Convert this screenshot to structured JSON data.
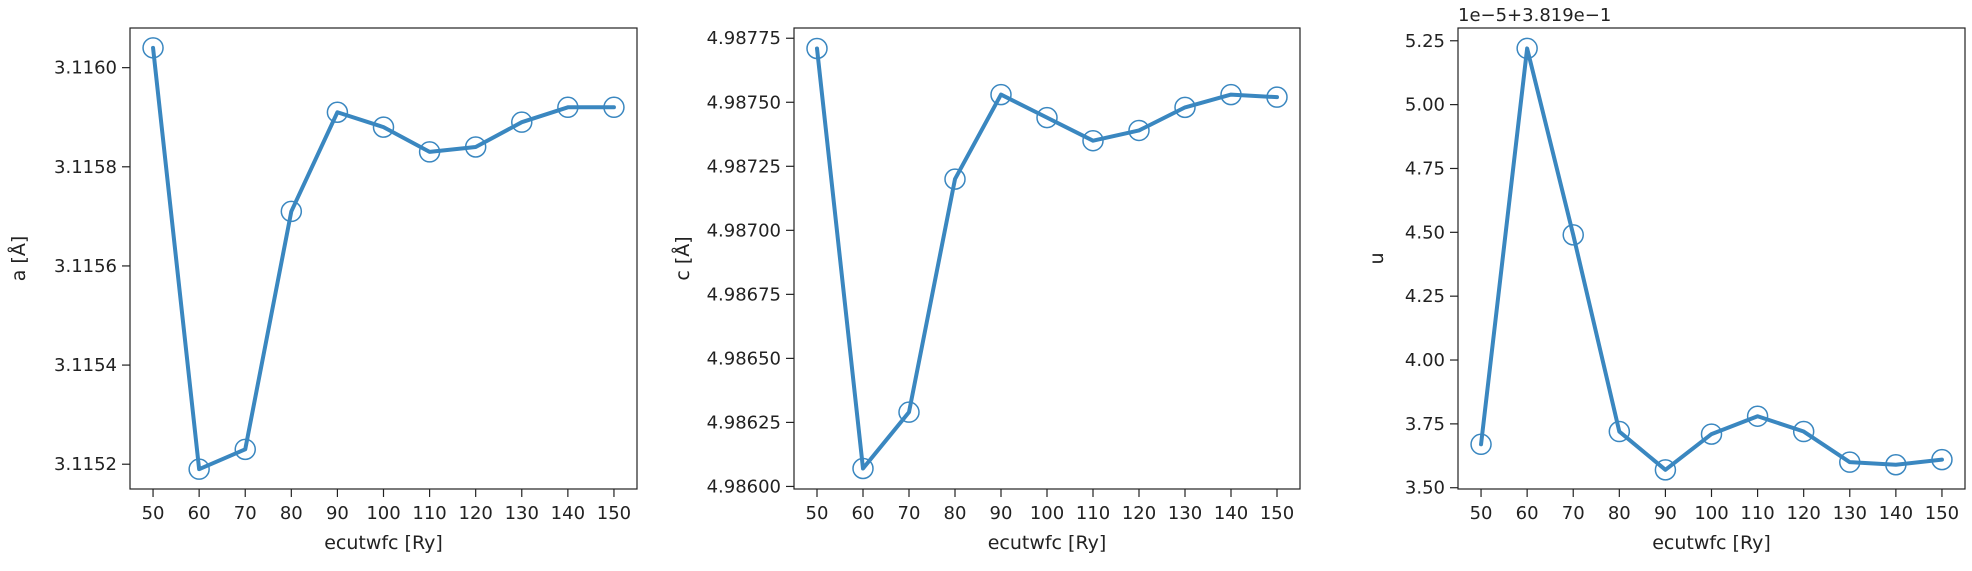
{
  "colors": {
    "line": "#3a87c0",
    "marker_edge": "#3a87c0",
    "axes": "#222222",
    "background": "#ffffff"
  },
  "chart_data": [
    {
      "type": "line",
      "xlabel": "ecutwfc [Ry]",
      "ylabel": "a [Å]",
      "offset_label": "",
      "x": [
        50,
        60,
        70,
        80,
        90,
        100,
        110,
        120,
        130,
        140,
        150
      ],
      "y": [
        3.11604,
        3.11519,
        3.11523,
        3.11571,
        3.11591,
        3.11588,
        3.11583,
        3.11584,
        3.11589,
        3.11592,
        3.11592
      ],
      "xticks": [
        50,
        60,
        70,
        80,
        90,
        100,
        110,
        120,
        130,
        140,
        150
      ],
      "xtick_labels": [
        "50",
        "60",
        "70",
        "80",
        "90",
        "100",
        "110",
        "120",
        "130",
        "140",
        "150"
      ],
      "xlim": [
        45,
        155
      ],
      "yticks": [
        3.1152,
        3.1154,
        3.1156,
        3.1158,
        3.116
      ],
      "ytick_labels": [
        "3.1152",
        "3.1154",
        "3.1156",
        "3.1158",
        "3.1160"
      ],
      "ylim": [
        3.11515,
        3.11608
      ],
      "grid": false,
      "legend": "none"
    },
    {
      "type": "line",
      "xlabel": "ecutwfc [Ry]",
      "ylabel": "c [Å]",
      "offset_label": "",
      "x": [
        50,
        60,
        70,
        80,
        90,
        100,
        110,
        120,
        130,
        140,
        150
      ],
      "y": [
        4.98771,
        4.98607,
        4.98629,
        4.9872,
        4.98753,
        4.98744,
        4.98735,
        4.98739,
        4.98748,
        4.98753,
        4.98752
      ],
      "xticks": [
        50,
        60,
        70,
        80,
        90,
        100,
        110,
        120,
        130,
        140,
        150
      ],
      "xtick_labels": [
        "50",
        "60",
        "70",
        "80",
        "90",
        "100",
        "110",
        "120",
        "130",
        "140",
        "150"
      ],
      "xlim": [
        45,
        155
      ],
      "yticks": [
        4.986,
        4.98625,
        4.9865,
        4.98675,
        4.987,
        4.98725,
        4.9875,
        4.98775
      ],
      "ytick_labels": [
        "4.98600",
        "4.98625",
        "4.98650",
        "4.98675",
        "4.98700",
        "4.98725",
        "4.98750",
        "4.98775"
      ],
      "ylim": [
        4.98599,
        4.98779
      ],
      "grid": false,
      "legend": "none"
    },
    {
      "type": "line",
      "xlabel": "ecutwfc [Ry]",
      "ylabel": "u",
      "offset_label": "1e−5+3.819e−1",
      "x": [
        50,
        60,
        70,
        80,
        90,
        100,
        110,
        120,
        130,
        140,
        150
      ],
      "y": [
        3.67,
        5.22,
        4.49,
        3.72,
        3.57,
        3.71,
        3.78,
        3.72,
        3.6,
        3.59,
        3.61
      ],
      "xticks": [
        50,
        60,
        70,
        80,
        90,
        100,
        110,
        120,
        130,
        140,
        150
      ],
      "xtick_labels": [
        "50",
        "60",
        "70",
        "80",
        "90",
        "100",
        "110",
        "120",
        "130",
        "140",
        "150"
      ],
      "xlim": [
        45,
        155
      ],
      "yticks": [
        3.5,
        3.75,
        4.0,
        4.25,
        4.5,
        4.75,
        5.0,
        5.25
      ],
      "ytick_labels": [
        "3.50",
        "3.75",
        "4.00",
        "4.25",
        "4.50",
        "4.75",
        "5.00",
        "5.25"
      ],
      "ylim": [
        3.495,
        5.3
      ],
      "grid": false,
      "legend": "none"
    }
  ]
}
